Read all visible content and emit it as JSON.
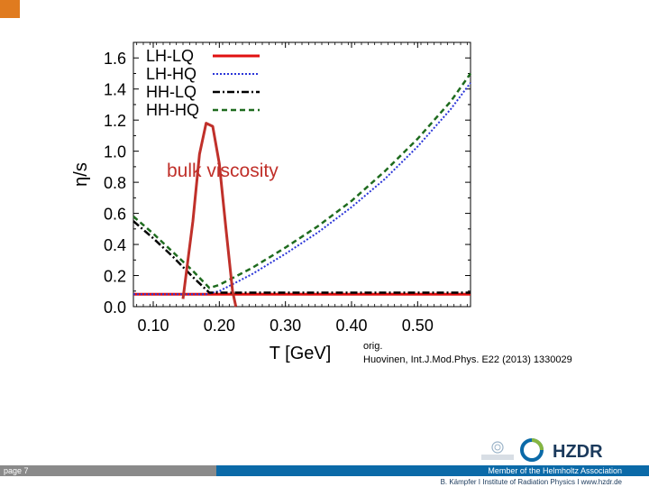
{
  "chart_data": {
    "type": "line",
    "xlabel": "T [GeV]",
    "ylabel": "η/s",
    "xlim": [
      0.07,
      0.58
    ],
    "ylim": [
      0.0,
      1.7
    ],
    "xticks": [
      "0.10",
      "0.20",
      "0.30",
      "0.40",
      "0.50"
    ],
    "yticks": [
      "0.0",
      "0.2",
      "0.4",
      "0.6",
      "0.8",
      "1.0",
      "1.2",
      "1.4",
      "1.6"
    ],
    "legend_position": "top-left",
    "series": [
      {
        "name": "LH-LQ",
        "color": "#e01010",
        "style": "solid",
        "x": [
          0.07,
          0.58
        ],
        "y": [
          0.08,
          0.08
        ]
      },
      {
        "name": "LH-HQ",
        "color": "#2a35d8",
        "style": "dotted",
        "x": [
          0.07,
          0.18,
          0.2,
          0.25,
          0.3,
          0.35,
          0.4,
          0.45,
          0.5,
          0.55,
          0.58
        ],
        "y": [
          0.08,
          0.08,
          0.1,
          0.21,
          0.34,
          0.48,
          0.64,
          0.82,
          1.03,
          1.27,
          1.44
        ]
      },
      {
        "name": "HH-LQ",
        "color": "#000000",
        "style": "dashdot",
        "x": [
          0.07,
          0.1,
          0.13,
          0.16,
          0.185,
          0.58
        ],
        "y": [
          0.55,
          0.44,
          0.32,
          0.19,
          0.09,
          0.09
        ]
      },
      {
        "name": "HH-HQ",
        "color": "#1e6b1e",
        "style": "dashed",
        "x": [
          0.07,
          0.1,
          0.13,
          0.16,
          0.185,
          0.2,
          0.25,
          0.3,
          0.35,
          0.4,
          0.45,
          0.5,
          0.55,
          0.58
        ],
        "y": [
          0.58,
          0.47,
          0.35,
          0.23,
          0.12,
          0.14,
          0.25,
          0.38,
          0.52,
          0.68,
          0.87,
          1.08,
          1.32,
          1.5
        ]
      }
    ],
    "overlay_curve": {
      "label": "bulk viscosity",
      "color": "#c0302a",
      "x": [
        0.145,
        0.16,
        0.17,
        0.18,
        0.19,
        0.2,
        0.21,
        0.22,
        0.225
      ],
      "y": [
        0.05,
        0.55,
        0.98,
        1.18,
        1.16,
        0.92,
        0.5,
        0.1,
        0.0
      ]
    }
  },
  "annotation": "bulk viscosity",
  "reference": {
    "line1": "orig.",
    "line2": "Huovinen, Int.J.Mod.Phys. E22 (2013) 1330029"
  },
  "footer": {
    "page": "page 7",
    "member": "Member of the Helmholtz Association",
    "credit": "B. Kämpfer  I  Institute of Radiation Physics  I  www.hzdr.de"
  },
  "logos": {
    "dresden": "DRESDEN concept",
    "hzdr": "HZDR"
  }
}
